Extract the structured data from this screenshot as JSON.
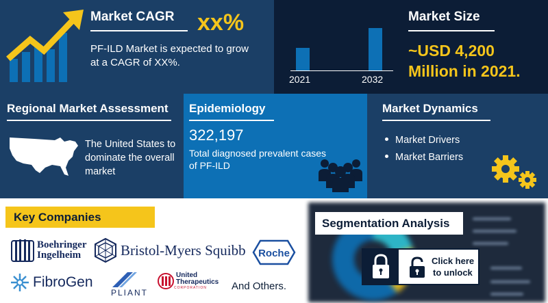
{
  "cagr": {
    "title": "Market CAGR",
    "value": "xx%",
    "description": "PF-ILD Market is expected to grow at a CAGR of XX%."
  },
  "market_size": {
    "title": "Market Size",
    "value": "~USD 4,200 Million in 2021.",
    "years": [
      "2021",
      "2032"
    ],
    "bar_levels": [
      0.35,
      0.65
    ]
  },
  "regional": {
    "title": "Regional Market Assessment",
    "text": "The United States to dominate the overall market"
  },
  "epidemiology": {
    "title": "Epidemiology",
    "number": "322,197",
    "description": "Total diagnosed prevalent cases of PF-ILD"
  },
  "dynamics": {
    "title": "Market Dynamics",
    "items": [
      "Market Drivers",
      "Market Barriers"
    ]
  },
  "companies": {
    "title": "Key Companies",
    "logos": {
      "boehringer": "Boehringer Ingelheim",
      "bms": "Bristol-Myers Squibb",
      "roche": "Roche",
      "fibrogen": "FibroGen",
      "pliant": "PLIANT",
      "united_therapeutics": "United Therapeutics",
      "united_therapeutics_sub": "CORPORATION"
    },
    "others": "And Others."
  },
  "segmentation": {
    "title": "Segmentation Analysis",
    "unlock_line1": "Click here",
    "unlock_line2": "to unlock"
  },
  "colors": {
    "navy": "#1b3f66",
    "dark_navy": "#0c1d36",
    "blue": "#0d70b5",
    "yellow": "#f5c51b"
  },
  "icons": [
    "growth-arrow-icon",
    "usa-map-icon",
    "people-group-icon",
    "gears-icon",
    "lock-icon",
    "open-lock-icon"
  ]
}
